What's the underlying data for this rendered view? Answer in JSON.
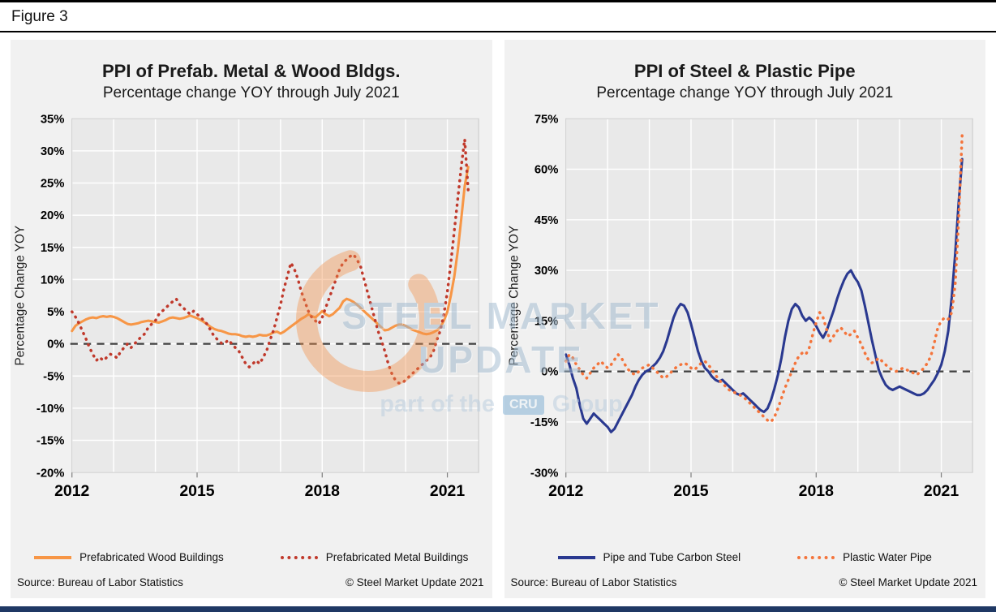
{
  "page": {
    "figure_label": "Figure 3",
    "accent_bar_color": "#1f3864"
  },
  "watermark": {
    "title": "STEEL MARKET UPDATE",
    "subtitle_prefix": "part of the",
    "subtitle_logo": "CRU",
    "subtitle_suffix": "Group",
    "crescent_color": "#f4924a"
  },
  "chart_data": [
    {
      "type": "line",
      "title": "PPI of Prefab. Metal & Wood Bldgs.",
      "subtitle": "Percentage change YOY through July 2021",
      "ylabel": "Percentage Change YOY",
      "xlabel": "",
      "grid": true,
      "legend_position": "bottom",
      "x_start_year": 2012,
      "x_end_label": "July 2021",
      "x_tick_years": [
        2012,
        2015,
        2018,
        2021
      ],
      "ylim": [
        -20,
        35
      ],
      "ytick_step": 5,
      "zero_line": true,
      "source": "Source: Bureau of Labor Statistics",
      "copyright": "© Steel Market Update 2021",
      "series": [
        {
          "name": "Prefabricated Wood Buildings",
          "style": "solid",
          "color": "#F79646",
          "values": [
            2.0,
            2.8,
            3.2,
            3.5,
            3.8,
            4.0,
            4.1,
            4.0,
            4.2,
            4.3,
            4.2,
            4.3,
            4.2,
            4.0,
            3.7,
            3.4,
            3.1,
            3.0,
            3.1,
            3.2,
            3.4,
            3.5,
            3.6,
            3.5,
            3.4,
            3.3,
            3.5,
            3.7,
            4.0,
            4.1,
            4.0,
            3.9,
            4.0,
            4.2,
            4.4,
            4.2,
            4.0,
            3.7,
            3.4,
            3.0,
            2.6,
            2.3,
            2.1,
            2.0,
            1.8,
            1.6,
            1.5,
            1.5,
            1.4,
            1.2,
            1.1,
            1.2,
            1.1,
            1.2,
            1.4,
            1.3,
            1.3,
            1.5,
            1.8,
            1.9,
            1.6,
            1.9,
            2.3,
            2.7,
            3.1,
            3.5,
            3.9,
            4.2,
            4.6,
            4.3,
            4.1,
            4.6,
            5.1,
            4.6,
            4.3,
            4.6,
            5.1,
            5.6,
            6.6,
            7.0,
            6.8,
            6.5,
            6.1,
            5.6,
            5.1,
            4.6,
            4.1,
            3.6,
            3.1,
            2.6,
            2.1,
            2.2,
            2.5,
            2.8,
            3.0,
            3.0,
            2.8,
            2.5,
            2.2,
            2.0,
            1.8,
            1.6,
            1.5,
            1.6,
            1.8,
            2.1,
            2.6,
            3.6,
            5.0,
            7.5,
            10.5,
            14.5,
            19.5,
            24.5,
            27.5
          ]
        },
        {
          "name": "Prefabricated Metal Buildings",
          "style": "dotted",
          "color": "#C0392B",
          "values": [
            5.0,
            4.2,
            3.2,
            2.0,
            0.8,
            -0.5,
            -1.6,
            -2.6,
            -2.1,
            -2.6,
            -2.1,
            -1.6,
            -1.8,
            -2.2,
            -1.2,
            -0.6,
            0.0,
            -0.6,
            0.0,
            0.6,
            1.1,
            1.6,
            2.6,
            3.1,
            3.6,
            4.6,
            5.1,
            5.6,
            6.1,
            6.6,
            7.0,
            6.1,
            5.6,
            5.1,
            4.6,
            5.1,
            4.6,
            4.1,
            3.6,
            3.0,
            2.0,
            1.1,
            0.6,
            0.1,
            0.1,
            0.6,
            0.0,
            -0.6,
            -1.1,
            -2.1,
            -3.1,
            -3.6,
            -3.1,
            -2.6,
            -3.1,
            -2.1,
            -1.1,
            0.6,
            2.1,
            4.1,
            6.1,
            8.6,
            10.6,
            12.6,
            11.6,
            10.1,
            8.1,
            6.6,
            5.1,
            4.1,
            3.6,
            3.1,
            4.1,
            5.6,
            7.1,
            8.6,
            10.1,
            11.6,
            12.6,
            13.1,
            13.6,
            13.9,
            13.1,
            12.1,
            10.1,
            8.1,
            6.1,
            4.1,
            2.1,
            0.6,
            -1.1,
            -3.1,
            -4.6,
            -5.6,
            -6.1,
            -6.1,
            -5.6,
            -5.1,
            -4.6,
            -4.1,
            -3.6,
            -3.1,
            -2.6,
            -2.1,
            -1.1,
            0.6,
            2.1,
            4.6,
            8.1,
            12.6,
            17.6,
            22.6,
            27.6,
            31.8,
            23.9
          ]
        }
      ]
    },
    {
      "type": "line",
      "title": "PPI of Steel & Plastic Pipe",
      "subtitle": "Percentage change YOY through July 2021",
      "ylabel": "Percentage Change YOY",
      "xlabel": "",
      "grid": true,
      "legend_position": "bottom",
      "x_start_year": 2012,
      "x_end_label": "July 2021",
      "x_tick_years": [
        2012,
        2015,
        2018,
        2021
      ],
      "ylim": [
        -30,
        75
      ],
      "ytick_step": 15,
      "zero_line": true,
      "source": "Source: Bureau of Labor Statistics",
      "copyright": "© Steel Market Update 2021",
      "series": [
        {
          "name": "Pipe and Tube Carbon Steel",
          "style": "solid",
          "color": "#2A3990",
          "values": [
            5.0,
            2.0,
            -2.0,
            -5.0,
            -10.0,
            -14.0,
            -15.5,
            -14.0,
            -12.5,
            -13.5,
            -14.5,
            -15.5,
            -16.5,
            -18.0,
            -17.0,
            -15.0,
            -13.0,
            -11.0,
            -9.0,
            -7.0,
            -4.5,
            -2.5,
            -1.0,
            0.0,
            0.5,
            1.5,
            2.5,
            4.0,
            6.0,
            9.0,
            12.5,
            16.0,
            18.5,
            20.0,
            19.5,
            17.5,
            14.0,
            10.0,
            6.0,
            3.0,
            1.0,
            0.0,
            -1.5,
            -2.5,
            -3.0,
            -2.5,
            -3.5,
            -4.5,
            -5.5,
            -6.5,
            -7.0,
            -6.5,
            -7.5,
            -8.5,
            -9.5,
            -10.5,
            -11.5,
            -12.0,
            -11.0,
            -8.5,
            -5.0,
            -1.0,
            4.0,
            10.0,
            15.0,
            18.5,
            20.0,
            19.0,
            16.5,
            15.0,
            16.0,
            15.0,
            13.5,
            11.5,
            10.0,
            12.0,
            15.0,
            18.0,
            21.5,
            24.5,
            27.0,
            29.0,
            30.0,
            28.0,
            26.5,
            24.0,
            19.5,
            14.5,
            9.5,
            5.0,
            0.5,
            -2.0,
            -4.0,
            -5.0,
            -5.5,
            -5.0,
            -4.5,
            -5.0,
            -5.5,
            -6.0,
            -6.5,
            -7.0,
            -7.0,
            -6.5,
            -5.5,
            -4.0,
            -2.5,
            -0.5,
            2.0,
            6.0,
            12.0,
            22.0,
            35.0,
            50.0,
            63.0
          ]
        },
        {
          "name": "Plastic Water Pipe",
          "style": "dotted",
          "color": "#F4743B",
          "values": [
            3.0,
            5.0,
            4.0,
            2.0,
            0.5,
            -1.0,
            -2.0,
            -0.5,
            1.0,
            2.0,
            3.0,
            2.0,
            1.0,
            2.0,
            3.5,
            5.0,
            4.0,
            2.0,
            0.5,
            -0.5,
            -1.0,
            0.0,
            1.0,
            1.5,
            2.0,
            1.0,
            0.0,
            -1.0,
            -2.0,
            -1.5,
            -0.5,
            0.5,
            1.5,
            2.0,
            2.5,
            2.0,
            1.0,
            0.5,
            1.5,
            2.5,
            3.0,
            2.0,
            0.5,
            -1.0,
            -2.5,
            -3.5,
            -4.5,
            -5.5,
            -6.0,
            -6.5,
            -7.0,
            -7.5,
            -8.5,
            -9.5,
            -10.5,
            -11.5,
            -12.5,
            -13.5,
            -14.5,
            -15.0,
            -13.5,
            -11.0,
            -8.0,
            -5.0,
            -2.5,
            0.0,
            2.5,
            4.5,
            5.5,
            5.0,
            7.0,
            11.0,
            14.5,
            17.5,
            16.0,
            12.5,
            9.0,
            10.5,
            12.0,
            13.0,
            12.0,
            10.5,
            11.0,
            12.0,
            10.0,
            8.0,
            5.5,
            3.5,
            2.5,
            3.0,
            4.0,
            3.0,
            2.0,
            1.0,
            0.5,
            0.0,
            0.5,
            1.0,
            0.5,
            0.0,
            -0.5,
            -1.0,
            0.0,
            1.0,
            2.5,
            4.5,
            8.5,
            13.0,
            15.0,
            16.0,
            15.5,
            17.5,
            26.0,
            45.0,
            70.0
          ]
        }
      ]
    }
  ]
}
